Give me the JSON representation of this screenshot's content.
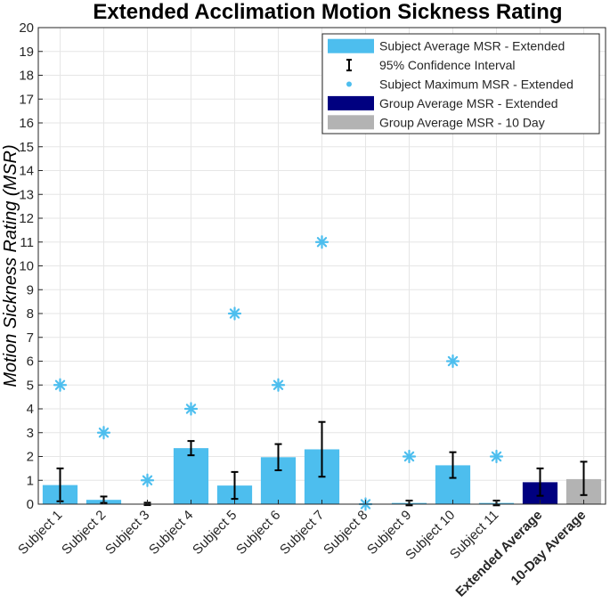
{
  "chart_data": {
    "type": "bar",
    "title": "Extended Acclimation Motion Sickness Rating",
    "xlabel": "",
    "ylabel": "Motion Sickness Rating (MSR)",
    "ylim": [
      0,
      20
    ],
    "yticks": [
      0,
      1,
      2,
      3,
      4,
      5,
      6,
      7,
      8,
      9,
      10,
      11,
      12,
      13,
      14,
      15,
      16,
      17,
      18,
      19,
      20
    ],
    "grid": true,
    "legend_position": "top-right",
    "categories": [
      "Subject 1",
      "Subject 2",
      "Subject 3",
      "Subject 4",
      "Subject 5",
      "Subject 6",
      "Subject 7",
      "Subject 8",
      "Subject 9",
      "Subject 10",
      "Subject 11",
      "Extended Average",
      "10-Day Average"
    ],
    "bold_categories": [
      "Extended Average",
      "10-Day Average"
    ],
    "series": [
      {
        "name": "Subject Average MSR - Extended",
        "kind": "bar",
        "color": "#4DBEEE",
        "values": [
          0.8,
          0.18,
          0.0,
          2.35,
          0.78,
          1.97,
          2.3,
          0.0,
          0.05,
          1.63,
          0.05,
          null,
          null
        ]
      },
      {
        "name": "95% Confidence Interval",
        "kind": "errorbar",
        "color": "#000000",
        "lower": [
          0.12,
          0.05,
          -0.04,
          2.05,
          0.22,
          1.42,
          1.15,
          null,
          -0.05,
          1.1,
          -0.05,
          0.35,
          0.38
        ],
        "upper": [
          1.5,
          0.32,
          0.06,
          2.65,
          1.35,
          2.52,
          3.45,
          null,
          0.15,
          2.18,
          0.15,
          1.5,
          1.78
        ]
      },
      {
        "name": "Subject Maximum MSR - Extended",
        "kind": "marker",
        "color": "#4DBEEE",
        "values": [
          5,
          3,
          1,
          4,
          8,
          5,
          11,
          0,
          2,
          6,
          2,
          null,
          null
        ]
      },
      {
        "name": "Group Average MSR - Extended",
        "kind": "bar",
        "color": "#000080",
        "values": [
          null,
          null,
          null,
          null,
          null,
          null,
          null,
          null,
          null,
          null,
          null,
          0.92,
          null
        ]
      },
      {
        "name": "Group Average MSR - 10 Day",
        "kind": "bar",
        "color": "#B3B3B3",
        "values": [
          null,
          null,
          null,
          null,
          null,
          null,
          null,
          null,
          null,
          null,
          null,
          null,
          1.05
        ]
      }
    ]
  }
}
